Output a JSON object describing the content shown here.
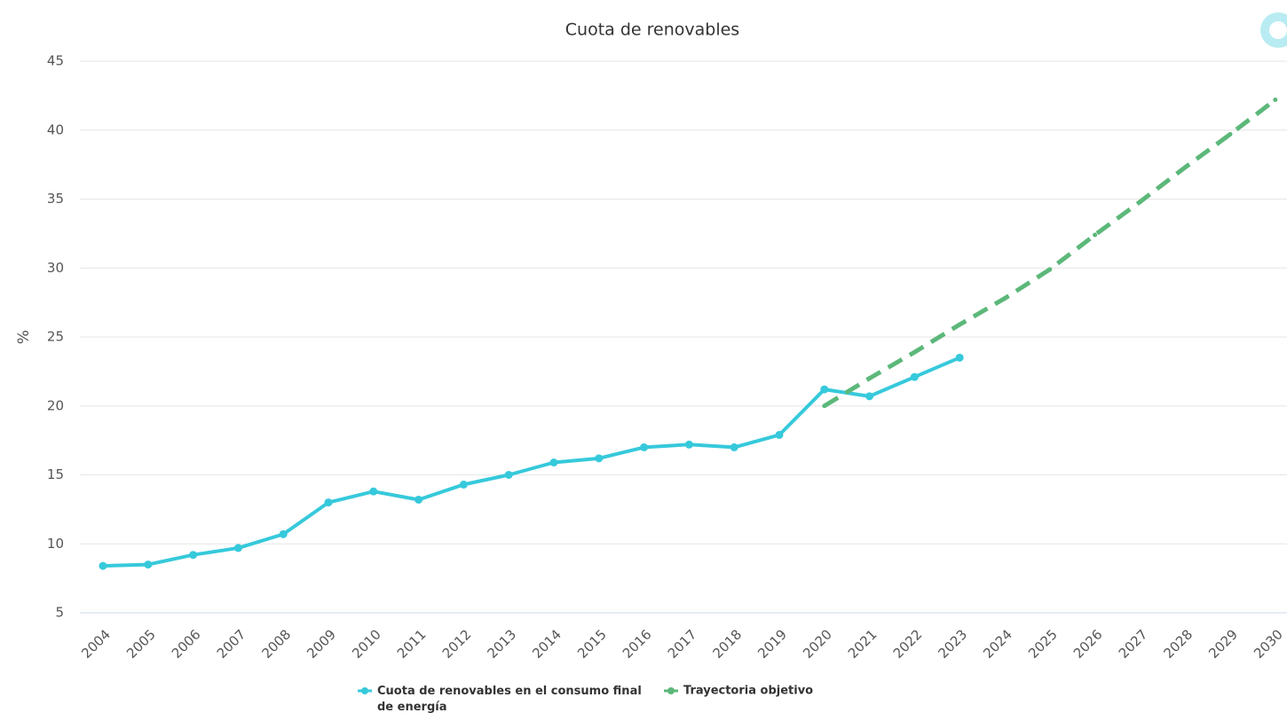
{
  "chart_data": {
    "type": "line",
    "title": "Cuota de renovables",
    "y_label": "%",
    "categories": [
      "2004",
      "2005",
      "2006",
      "2007",
      "2008",
      "2009",
      "2010",
      "2011",
      "2012",
      "2013",
      "2014",
      "2015",
      "2016",
      "2017",
      "2018",
      "2019",
      "2020",
      "2021",
      "2022",
      "2023",
      "2024",
      "2025",
      "2026",
      "2027",
      "2028",
      "2029",
      "2030"
    ],
    "series": [
      {
        "name": "Cuota de renovables en el consumo final de energía",
        "color": "#36c9db",
        "dashed": false,
        "values": [
          8.4,
          8.5,
          9.2,
          9.7,
          10.7,
          13.0,
          13.8,
          13.2,
          14.3,
          15.0,
          15.9,
          16.2,
          17.0,
          17.2,
          17.0,
          17.9,
          21.2,
          20.7,
          22.1,
          23.5,
          null,
          null,
          null,
          null,
          null,
          null,
          null
        ]
      },
      {
        "name": "Trayectoria objetivo",
        "color": "#5cb87a",
        "dashed": true,
        "values": [
          null,
          null,
          null,
          null,
          null,
          null,
          null,
          null,
          null,
          null,
          null,
          null,
          null,
          null,
          null,
          null,
          20.0,
          22.0,
          23.9,
          25.9,
          27.8,
          29.9,
          32.4,
          34.8,
          37.3,
          39.7,
          42.2
        ]
      }
    ],
    "ylim": [
      5,
      45
    ],
    "yticks": [
      5,
      10,
      15,
      20,
      25,
      30,
      35,
      40,
      45
    ],
    "grid": true,
    "legend": "bottom"
  }
}
